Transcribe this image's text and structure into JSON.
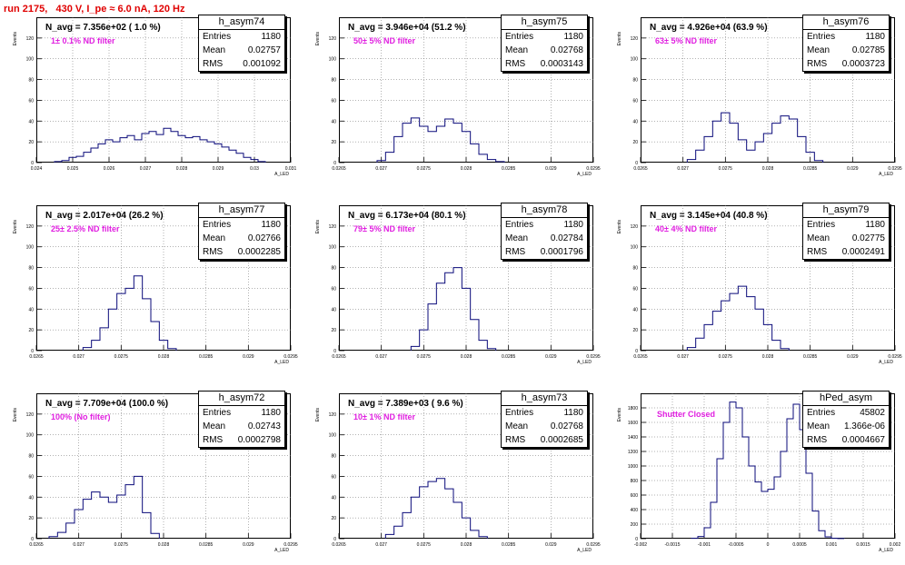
{
  "run_title": "run 2175,   430 V, I_pe ≈ 6.0 nA, 120 Hz",
  "ylabel": "Events",
  "xlabel": "A_LED",
  "stats_labels": {
    "entries": "Entries",
    "mean": "Mean",
    "rms": "RMS"
  },
  "chart_data": [
    {
      "type": "bar",
      "name": "h_asym74",
      "navg": "N_avg = 7.356e+02 ( 1.0 %)",
      "filter": "1± 0.1% ND filter",
      "entries": "1180",
      "mean": "0.02757",
      "rms": "0.001092",
      "xlim": [
        0.024,
        0.031
      ],
      "ylim": [
        0,
        140
      ],
      "xticks": [
        "0.024",
        "0.025",
        "0.026",
        "0.027",
        "0.028",
        "0.029",
        "0.03",
        "0.031"
      ],
      "yticks": [
        "0",
        "20",
        "40",
        "60",
        "80",
        "100",
        "120"
      ],
      "x": [
        0.0246,
        0.0248,
        0.025,
        0.0252,
        0.0254,
        0.0256,
        0.0258,
        0.026,
        0.0262,
        0.0264,
        0.0266,
        0.0268,
        0.027,
        0.0272,
        0.0274,
        0.0276,
        0.0278,
        0.028,
        0.0282,
        0.0284,
        0.0286,
        0.0288,
        0.029,
        0.0292,
        0.0294,
        0.0296,
        0.0298,
        0.03,
        0.0302
      ],
      "values": [
        1,
        2,
        5,
        6,
        10,
        14,
        18,
        22,
        20,
        24,
        26,
        22,
        28,
        30,
        27,
        33,
        30,
        26,
        24,
        25,
        22,
        20,
        18,
        15,
        12,
        9,
        5,
        3,
        1
      ]
    },
    {
      "type": "bar",
      "name": "h_asym75",
      "navg": "N_avg = 3.946e+04 (51.2 %)",
      "filter": "50± 5% ND filter",
      "entries": "1180",
      "mean": "0.02768",
      "rms": "0.0003143",
      "xlim": [
        0.0265,
        0.0295
      ],
      "ylim": [
        0,
        140
      ],
      "xticks": [
        "0.0265",
        "0.027",
        "0.0275",
        "0.028",
        "0.0285",
        "0.029",
        "0.0295"
      ],
      "yticks": [
        "0",
        "20",
        "40",
        "60",
        "80",
        "100",
        "120"
      ],
      "x": [
        0.027,
        0.0271,
        0.0272,
        0.0273,
        0.0274,
        0.0275,
        0.0276,
        0.0277,
        0.0278,
        0.0279,
        0.028,
        0.0281,
        0.0282,
        0.0283,
        0.0284
      ],
      "values": [
        2,
        10,
        25,
        38,
        43,
        35,
        30,
        35,
        42,
        38,
        30,
        18,
        8,
        3,
        1
      ]
    },
    {
      "type": "bar",
      "name": "h_asym76",
      "navg": "N_avg = 4.926e+04 (63.9 %)",
      "filter": "63± 5% ND filter",
      "entries": "1180",
      "mean": "0.02785",
      "rms": "0.0003723",
      "xlim": [
        0.0265,
        0.0295
      ],
      "ylim": [
        0,
        140
      ],
      "xticks": [
        "0.0265",
        "0.027",
        "0.0275",
        "0.028",
        "0.0285",
        "0.029",
        "0.0295"
      ],
      "yticks": [
        "0",
        "20",
        "40",
        "60",
        "80",
        "100",
        "120"
      ],
      "x": [
        0.0271,
        0.0272,
        0.0273,
        0.0274,
        0.0275,
        0.0276,
        0.0277,
        0.0278,
        0.0279,
        0.028,
        0.0281,
        0.0282,
        0.0283,
        0.0284,
        0.0285,
        0.0286
      ],
      "values": [
        3,
        12,
        25,
        40,
        48,
        38,
        22,
        12,
        20,
        28,
        38,
        45,
        42,
        25,
        10,
        2
      ]
    },
    {
      "type": "bar",
      "name": "h_asym77",
      "navg": "N_avg = 2.017e+04 (26.2 %)",
      "filter": "25± 2.5% ND filter",
      "entries": "1180",
      "mean": "0.02766",
      "rms": "0.0002285",
      "xlim": [
        0.0265,
        0.0295
      ],
      "ylim": [
        0,
        140
      ],
      "xticks": [
        "0.0265",
        "0.027",
        "0.0275",
        "0.028",
        "0.0285",
        "0.029",
        "0.0295"
      ],
      "yticks": [
        "0",
        "20",
        "40",
        "60",
        "80",
        "100",
        "120"
      ],
      "x": [
        0.0271,
        0.0272,
        0.0273,
        0.0274,
        0.0275,
        0.0276,
        0.0277,
        0.0278,
        0.0279,
        0.028,
        0.0281
      ],
      "values": [
        3,
        10,
        22,
        40,
        55,
        60,
        72,
        50,
        28,
        10,
        2
      ]
    },
    {
      "type": "bar",
      "name": "h_asym78",
      "navg": "N_avg = 6.173e+04 (80.1 %)",
      "filter": "79± 5% ND filter",
      "entries": "1180",
      "mean": "0.02784",
      "rms": "0.0001796",
      "xlim": [
        0.0265,
        0.0295
      ],
      "ylim": [
        0,
        140
      ],
      "xticks": [
        "0.0265",
        "0.027",
        "0.0275",
        "0.028",
        "0.0285",
        "0.029",
        "0.0295"
      ],
      "yticks": [
        "0",
        "20",
        "40",
        "60",
        "80",
        "100",
        "120"
      ],
      "x": [
        0.0274,
        0.0275,
        0.0276,
        0.0277,
        0.0278,
        0.0279,
        0.028,
        0.0281,
        0.0282,
        0.0283
      ],
      "values": [
        4,
        20,
        45,
        65,
        75,
        80,
        60,
        30,
        10,
        2
      ]
    },
    {
      "type": "bar",
      "name": "h_asym79",
      "navg": "N_avg = 3.145e+04 (40.8 %)",
      "filter": "40± 4% ND filter",
      "entries": "1180",
      "mean": "0.02775",
      "rms": "0.0002491",
      "xlim": [
        0.0265,
        0.0295
      ],
      "ylim": [
        0,
        140
      ],
      "xticks": [
        "0.0265",
        "0.027",
        "0.0275",
        "0.028",
        "0.0285",
        "0.029",
        "0.0295"
      ],
      "yticks": [
        "0",
        "20",
        "40",
        "60",
        "80",
        "100",
        "120"
      ],
      "x": [
        0.0271,
        0.0272,
        0.0273,
        0.0274,
        0.0275,
        0.0276,
        0.0277,
        0.0278,
        0.0279,
        0.028,
        0.0281,
        0.0282
      ],
      "values": [
        3,
        12,
        25,
        38,
        48,
        55,
        62,
        52,
        40,
        25,
        10,
        2
      ]
    },
    {
      "type": "bar",
      "name": "h_asym72",
      "navg": "N_avg = 7.709e+04 (100.0 %)",
      "filter": "100% (No filter)",
      "entries": "1180",
      "mean": "0.02743",
      "rms": "0.0002798",
      "xlim": [
        0.0265,
        0.0295
      ],
      "ylim": [
        0,
        140
      ],
      "xticks": [
        "0.0265",
        "0.027",
        "0.0275",
        "0.028",
        "0.0285",
        "0.029",
        "0.0295"
      ],
      "yticks": [
        "0",
        "20",
        "40",
        "60",
        "80",
        "100",
        "120"
      ],
      "x": [
        0.0267,
        0.0268,
        0.0269,
        0.027,
        0.0271,
        0.0272,
        0.0273,
        0.0274,
        0.0275,
        0.0276,
        0.0277,
        0.0278,
        0.0279
      ],
      "values": [
        2,
        6,
        15,
        28,
        38,
        45,
        40,
        35,
        42,
        52,
        60,
        25,
        5
      ]
    },
    {
      "type": "bar",
      "name": "h_asym73",
      "navg": "N_avg = 7.389e+03 ( 9.6 %)",
      "filter": "10± 1% ND filter",
      "entries": "1180",
      "mean": "0.02768",
      "rms": "0.0002685",
      "xlim": [
        0.0265,
        0.0295
      ],
      "ylim": [
        0,
        140
      ],
      "xticks": [
        "0.0265",
        "0.027",
        "0.0275",
        "0.028",
        "0.0285",
        "0.029",
        "0.0295"
      ],
      "yticks": [
        "0",
        "20",
        "40",
        "60",
        "80",
        "100",
        "120"
      ],
      "x": [
        0.0271,
        0.0272,
        0.0273,
        0.0274,
        0.0275,
        0.0276,
        0.0277,
        0.0278,
        0.0279,
        0.028,
        0.0281,
        0.0282
      ],
      "values": [
        4,
        12,
        25,
        40,
        50,
        55,
        58,
        48,
        35,
        20,
        8,
        2
      ]
    },
    {
      "type": "bar",
      "name": "hPed_asym",
      "navg": "",
      "filter": "Shutter Closed",
      "entries": "45802",
      "mean": "1.366e-06",
      "rms": "0.0004667",
      "xlim": [
        -0.002,
        0.002
      ],
      "ylim": [
        0,
        2000
      ],
      "xticks": [
        "-0.002",
        "-0.0015",
        "-0.001",
        "-0.0005",
        "0",
        "0.0005",
        "0.001",
        "0.0015",
        "0.002"
      ],
      "yticks": [
        "0",
        "200",
        "400",
        "600",
        "800",
        "1000",
        "1200",
        "1400",
        "1600",
        "1800"
      ],
      "x": [
        -0.00115,
        -0.00105,
        -0.00095,
        -0.00085,
        -0.00075,
        -0.00065,
        -0.00055,
        -0.00045,
        -0.00035,
        -0.00025,
        -0.00015,
        -5e-05,
        5e-05,
        0.00015,
        0.00025,
        0.00035,
        0.00045,
        0.00055,
        0.00065,
        0.00075,
        0.00085,
        0.00095,
        0.00105,
        0.00115
      ],
      "values": [
        5,
        30,
        150,
        500,
        1100,
        1600,
        1880,
        1800,
        1400,
        1000,
        780,
        650,
        680,
        850,
        1200,
        1650,
        1850,
        1500,
        900,
        380,
        110,
        25,
        5,
        1
      ]
    }
  ]
}
